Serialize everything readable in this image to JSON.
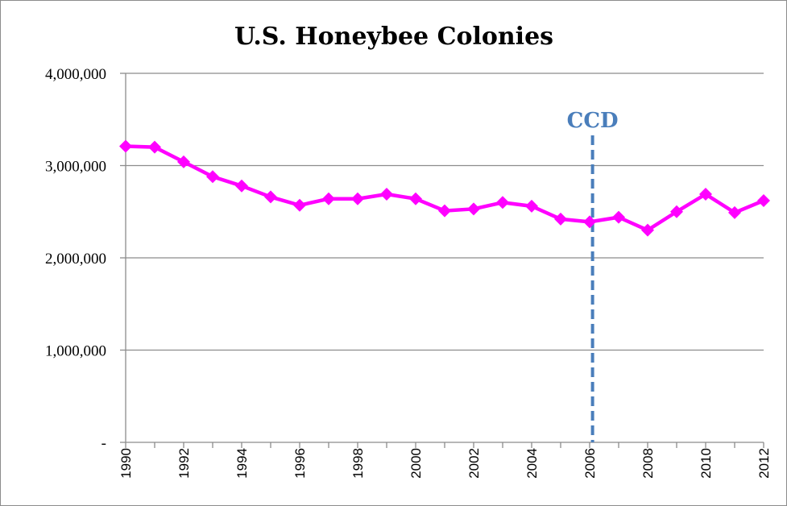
{
  "chart_data": {
    "type": "line",
    "title": "U.S. Honeybee Colonies",
    "xlabel": "",
    "ylabel": "",
    "ylim": [
      0,
      4000000
    ],
    "grid": "horizontal",
    "yticks": [
      {
        "value": 0,
        "label": "-"
      },
      {
        "value": 1000000,
        "label": "1,000,000"
      },
      {
        "value": 2000000,
        "label": "2,000,000"
      },
      {
        "value": 3000000,
        "label": "3,000,000"
      },
      {
        "value": 4000000,
        "label": "4,000,000"
      }
    ],
    "xtick_labels": [
      "1990",
      "1992",
      "1994",
      "1996",
      "1998",
      "2000",
      "2002",
      "2004",
      "2006",
      "2008",
      "2010",
      "2012"
    ],
    "x": [
      1990,
      1991,
      1992,
      1993,
      1994,
      1995,
      1996,
      1997,
      1998,
      1999,
      2000,
      2001,
      2002,
      2003,
      2004,
      2005,
      2006,
      2007,
      2008,
      2009,
      2010,
      2011,
      2012
    ],
    "series": [
      {
        "color": "#ff00ff",
        "marker": "diamond",
        "values": [
          3210000,
          3200000,
          3040000,
          2880000,
          2780000,
          2660000,
          2570000,
          2640000,
          2640000,
          2690000,
          2640000,
          2510000,
          2530000,
          2600000,
          2560000,
          2420000,
          2390000,
          2440000,
          2300000,
          2500000,
          2690000,
          2490000,
          2620000
        ]
      }
    ],
    "annotations": [
      {
        "type": "vline",
        "x": 2006.1,
        "label": "CCD",
        "color": "#4a7ebb",
        "style": "dashed"
      }
    ]
  }
}
